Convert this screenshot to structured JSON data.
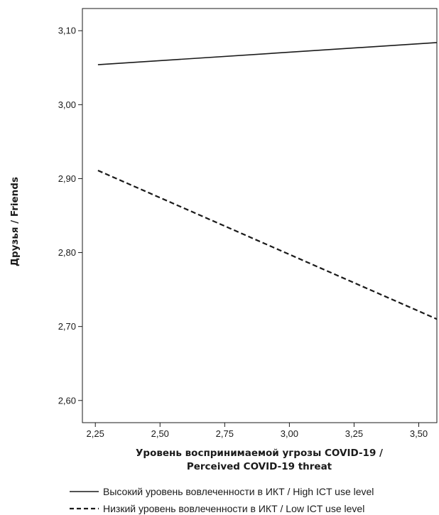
{
  "chart_data": {
    "type": "line",
    "xlabel_line1": "Уровень воспринимаемой угрозы COVID-19 /",
    "xlabel_line2": "Perceived COVID-19 threat",
    "ylabel": "Друзья / Friends",
    "xlim": [
      2.2,
      3.57
    ],
    "ylim": [
      2.57,
      3.13
    ],
    "x_ticks": [
      2.25,
      2.5,
      2.75,
      3.0,
      3.25,
      3.5
    ],
    "x_tick_labels": [
      "2,25",
      "2,50",
      "2,75",
      "3,00",
      "3,25",
      "3,50"
    ],
    "y_ticks": [
      2.6,
      2.7,
      2.8,
      2.9,
      3.0,
      3.1
    ],
    "y_tick_labels": [
      "2,60",
      "2,70",
      "2,80",
      "2,90",
      "3,00",
      "3,10"
    ],
    "grid": false,
    "legend_position": "bottom",
    "series": [
      {
        "name": "Высокий уровень вовлеченности в ИКТ / High ICT use level",
        "line_style": "solid",
        "x": [
          2.26,
          3.57
        ],
        "y": [
          3.054,
          3.084
        ]
      },
      {
        "name": "Низкий уровень вовлеченности в ИКТ / Low ICT use level",
        "line_style": "dashed",
        "x": [
          2.26,
          3.57
        ],
        "y": [
          2.911,
          2.71
        ]
      }
    ]
  }
}
